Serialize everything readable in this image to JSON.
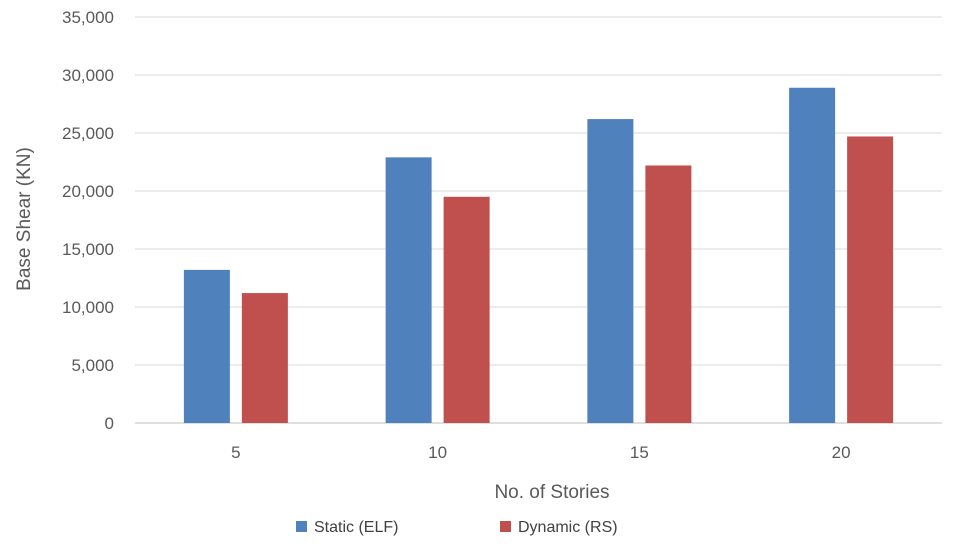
{
  "chart_data": {
    "type": "bar",
    "title": "",
    "xlabel": "No. of Stories",
    "ylabel": "Base Shear (KN)",
    "categories": [
      "5",
      "10",
      "15",
      "20"
    ],
    "ylim": [
      0,
      35000
    ],
    "yticks": [
      0,
      5000,
      10000,
      15000,
      20000,
      25000,
      30000,
      35000
    ],
    "ytick_labels": [
      "0",
      "5,000",
      "10,000",
      "15,000",
      "20,000",
      "25,000",
      "30,000",
      "35,000"
    ],
    "grid": "horizontal",
    "legend_position": "bottom",
    "series": [
      {
        "name": "Static (ELF)",
        "color": "#4f81bd",
        "values": [
          13200,
          22900,
          26200,
          28900
        ]
      },
      {
        "name": "Dynamic (RS)",
        "color": "#c0504d",
        "values": [
          11200,
          19500,
          22200,
          24700
        ]
      }
    ],
    "gridline_color": "#d9d9d9",
    "baseline_color": "#bfbfbf"
  }
}
